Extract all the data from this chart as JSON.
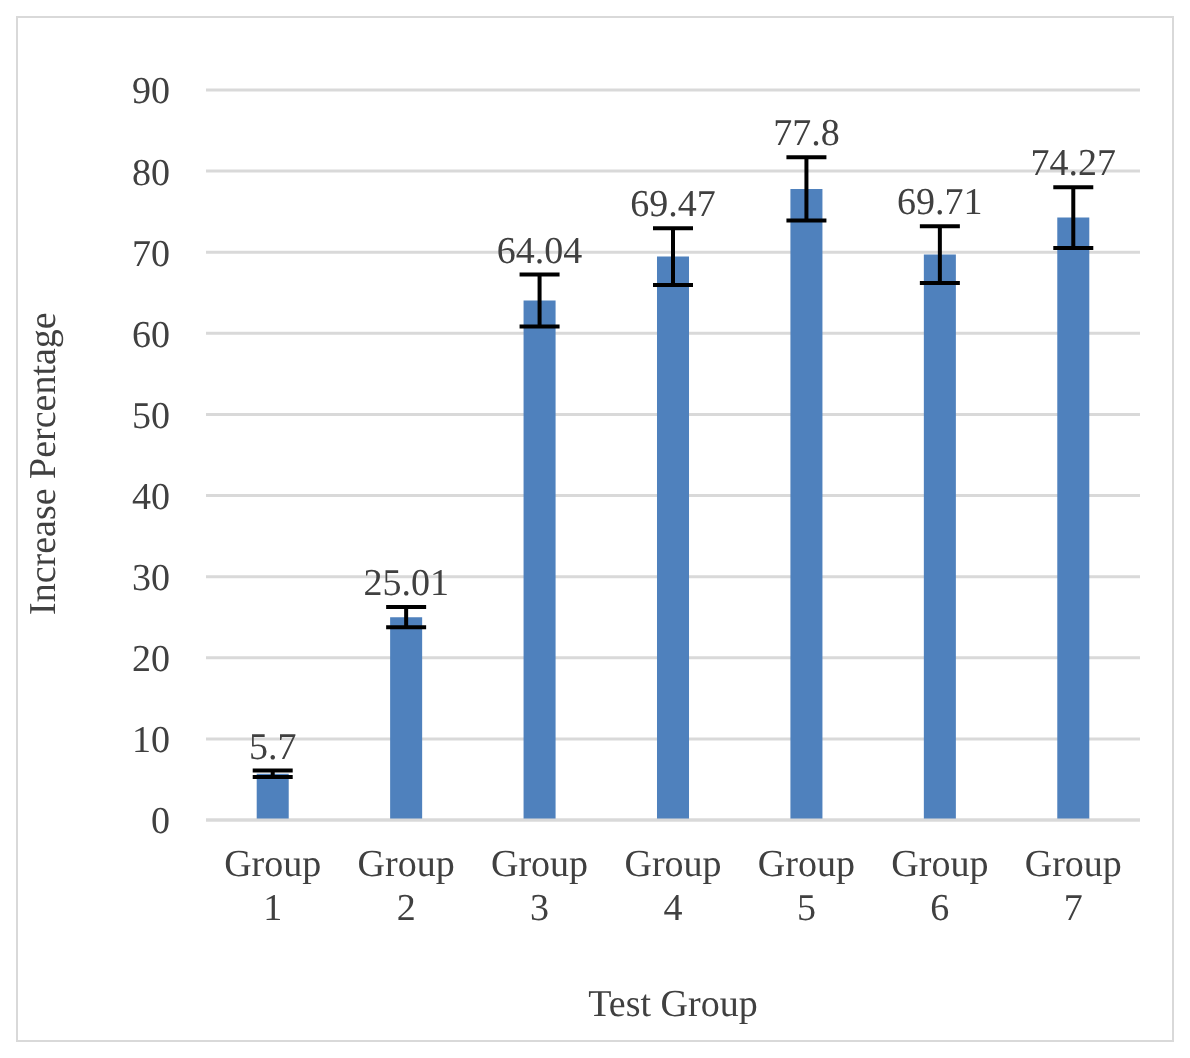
{
  "chart_data": {
    "type": "bar",
    "xlabel": "Test Group",
    "ylabel": "Increase Percentage",
    "categories": [
      "Group 1",
      "Group 2",
      "Group 3",
      "Group 4",
      "Group 5",
      "Group 6",
      "Group 7"
    ],
    "values": [
      5.7,
      25.01,
      64.04,
      69.47,
      77.8,
      69.71,
      74.27
    ],
    "errors": [
      0.4,
      1.25,
      3.2,
      3.5,
      3.9,
      3.5,
      3.75
    ],
    "color": "#4f81bd",
    "ylim": [
      0,
      90
    ],
    "yticks": [
      0,
      10,
      20,
      30,
      40,
      50,
      60,
      70,
      80,
      90
    ],
    "grid": "y",
    "data_labels": true,
    "legend": false
  }
}
